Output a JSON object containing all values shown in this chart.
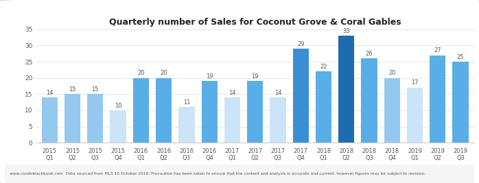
{
  "title": "Quarterly number of Sales for Coconut Grove & Coral Gables",
  "categories": [
    "2015\nQ1",
    "2015\nQ2",
    "2015\nQ3",
    "2015\nQ4",
    "2016\nQ1",
    "2016\nQ2",
    "2016\nQ3",
    "2016\nQ4",
    "2017\nQ1",
    "2017\nQ2",
    "2017\nQ3",
    "2017\nQ4",
    "2018\nQ1",
    "2018\nQ2",
    "2018\nQ3",
    "2018\nQ4",
    "2019\nQ1",
    "2019\nQ2",
    "2019\nQ3"
  ],
  "values": [
    14,
    15,
    15,
    10,
    20,
    20,
    11,
    19,
    14,
    19,
    14,
    29,
    22,
    33,
    26,
    20,
    17,
    27,
    25
  ],
  "bar_colors": [
    "#95c8ef",
    "#95c8ef",
    "#95c8ef",
    "#cce4f7",
    "#5aaee8",
    "#5aaee8",
    "#cce4f7",
    "#5aaee8",
    "#cce4f7",
    "#5aaee8",
    "#cce4f7",
    "#3a8fd4",
    "#5aaee8",
    "#1e6bb0",
    "#5aaee8",
    "#95c8ef",
    "#cce4f7",
    "#5aaee8",
    "#5aaee8"
  ],
  "ylim": [
    0,
    35
  ],
  "yticks": [
    0,
    5,
    10,
    15,
    20,
    25,
    30,
    35
  ],
  "footer_text": "www.condoblackbook.com  Data sourced from MLS 10 October 2019. Precaution has been taken to ensure that the content and analysis is accurate and current, however figures may be subject to revision.",
  "background_color": "#ffffff",
  "plot_bg_color": "#ffffff",
  "border_color": "#cccccc"
}
